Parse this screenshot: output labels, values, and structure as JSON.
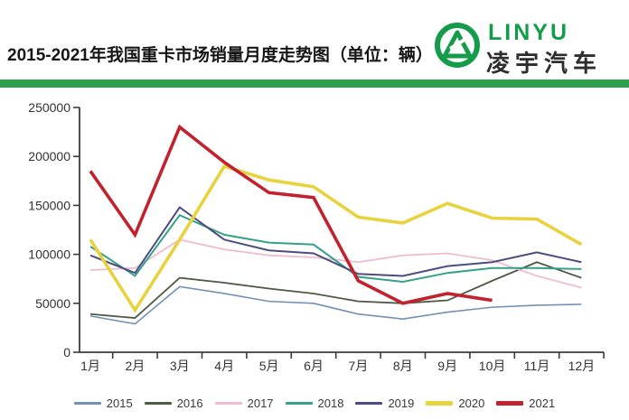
{
  "header": {
    "title": "2015-2021年我国重卡市场销量月度走势图（单位：辆）",
    "logo": {
      "name": "LINYU",
      "subname": "凌宇汽车",
      "green": "#149c4b",
      "bar_color": "#2f9e4e"
    }
  },
  "chart_data": {
    "type": "line",
    "title": "2015-2021年我国重卡市场销量月度走势图（单位：辆）",
    "xlabel": "",
    "ylabel": "",
    "categories": [
      "1月",
      "2月",
      "3月",
      "4月",
      "5月",
      "6月",
      "7月",
      "8月",
      "9月",
      "10月",
      "11月",
      "12月"
    ],
    "ylim": [
      0,
      250000
    ],
    "yticks": [
      0,
      50000,
      100000,
      150000,
      200000,
      250000
    ],
    "grid": false,
    "legend_position": "bottom",
    "series": [
      {
        "name": "2015",
        "color": "#7291b4",
        "width": 1.6,
        "values": [
          37000,
          29000,
          67000,
          60000,
          52000,
          50000,
          39000,
          34000,
          41000,
          46000,
          48000,
          49000
        ]
      },
      {
        "name": "2016",
        "color": "#4f5a44",
        "width": 1.8,
        "values": [
          39000,
          35000,
          76000,
          71000,
          65000,
          60000,
          52000,
          50000,
          53000,
          73000,
          92000,
          76000
        ]
      },
      {
        "name": "2017",
        "color": "#f0bcd2",
        "width": 1.8,
        "values": [
          84000,
          86000,
          115000,
          105000,
          99000,
          97000,
          92000,
          99000,
          101000,
          94000,
          78000,
          66000
        ]
      },
      {
        "name": "2018",
        "color": "#35a188",
        "width": 2.0,
        "values": [
          108000,
          78000,
          140000,
          120000,
          112000,
          110000,
          77000,
          72000,
          81000,
          86000,
          86000,
          85000
        ]
      },
      {
        "name": "2019",
        "color": "#4d4c80",
        "width": 2.0,
        "values": [
          99000,
          81000,
          148000,
          115000,
          104000,
          101000,
          80000,
          78000,
          88000,
          92000,
          102000,
          92000
        ]
      },
      {
        "name": "2020",
        "color": "#e8d23e",
        "width": 3.6,
        "values": [
          115000,
          43000,
          115000,
          190000,
          176000,
          169000,
          138000,
          132000,
          152000,
          137000,
          136000,
          110000
        ]
      },
      {
        "name": "2021",
        "color": "#c2222e",
        "width": 3.6,
        "values": [
          185000,
          120000,
          230000,
          194000,
          163000,
          158000,
          73000,
          50000,
          60000,
          53000,
          null,
          null
        ]
      }
    ]
  }
}
